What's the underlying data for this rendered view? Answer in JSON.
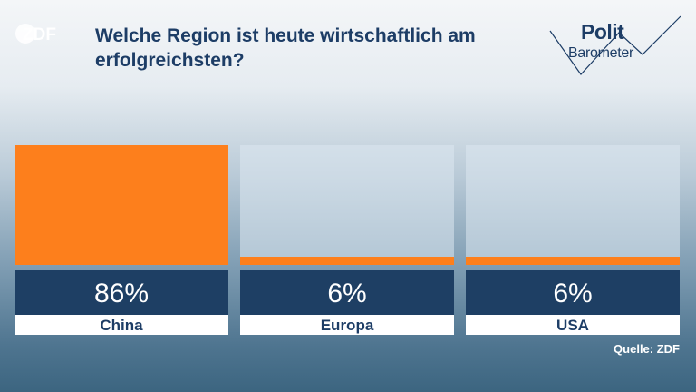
{
  "logo": "ZDF",
  "header": {
    "title": "Welche Region ist heute wirtschaftlich am erfolgreichsten?",
    "brand_line1": "Polit",
    "brand_line2": "Barometer"
  },
  "source": "Quelle: ZDF",
  "colors": {
    "accent": "#fd7f1c",
    "navy": "#1e3f64",
    "title": "#1d3d66"
  },
  "chart_data": {
    "type": "bar",
    "title": "Welche Region ist heute wirtschaftlich am erfolgreichsten?",
    "categories": [
      "China",
      "Europa",
      "USA"
    ],
    "values": [
      86,
      6,
      6
    ],
    "value_labels": [
      "86%",
      "6%",
      "6%"
    ],
    "ylim": [
      0,
      86
    ],
    "unit": "%"
  }
}
